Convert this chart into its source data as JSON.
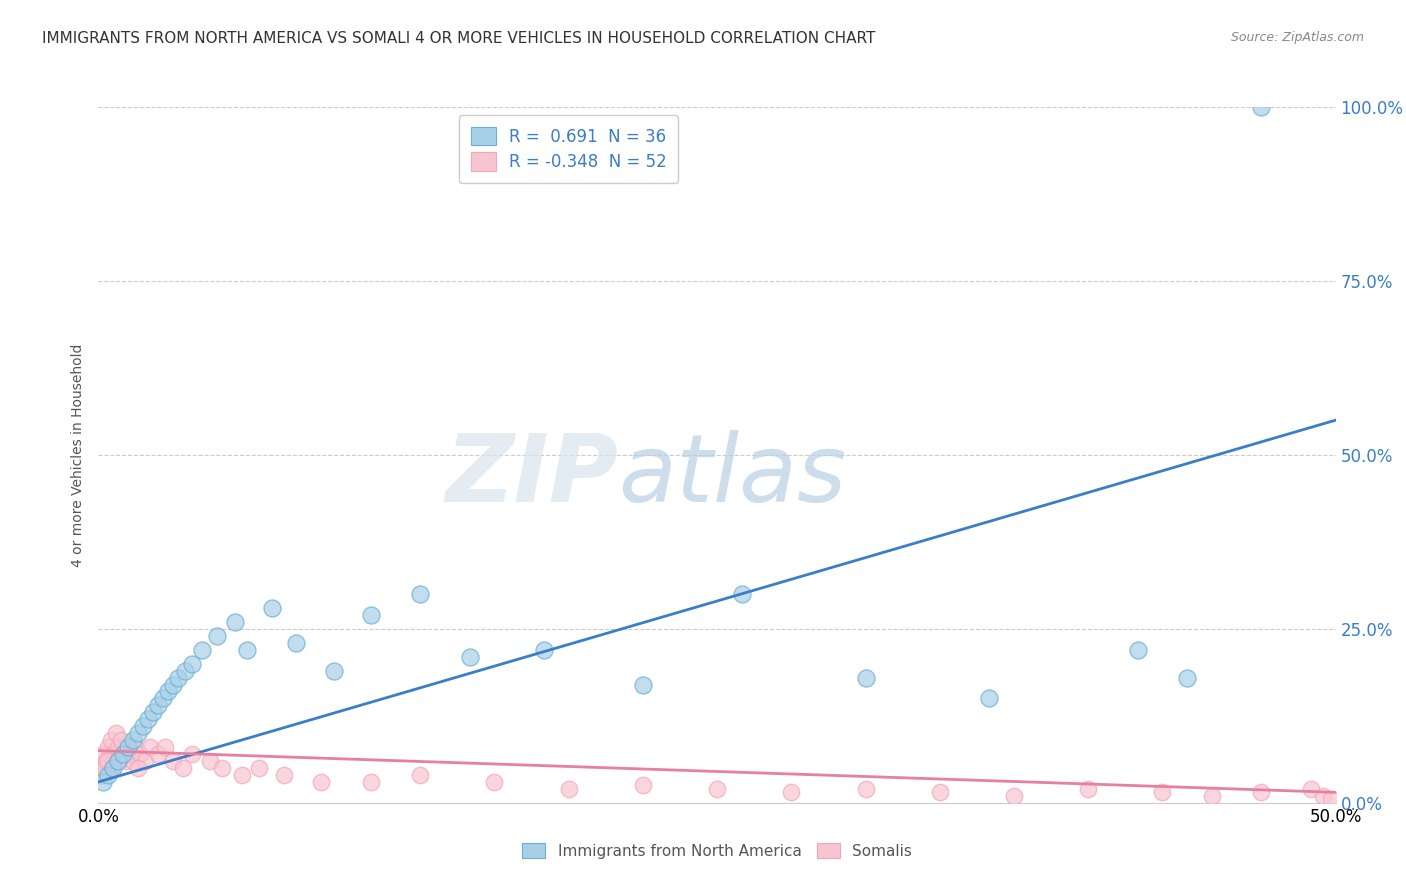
{
  "title": "IMMIGRANTS FROM NORTH AMERICA VS SOMALI 4 OR MORE VEHICLES IN HOUSEHOLD CORRELATION CHART",
  "source": "Source: ZipAtlas.com",
  "ylabel": "4 or more Vehicles in Household",
  "ytick_vals": [
    0.0,
    25.0,
    50.0,
    75.0,
    100.0
  ],
  "xlim": [
    0.0,
    50.0
  ],
  "ylim": [
    0.0,
    100.0
  ],
  "legend1_r": "0.691",
  "legend1_n": "36",
  "legend2_r": "-0.348",
  "legend2_n": "52",
  "blue_color": "#a8cfe8",
  "blue_edge_color": "#6aaed6",
  "pink_color": "#f7c5d0",
  "pink_edge_color": "#f4a6b8",
  "blue_line_color": "#3a7dc9",
  "pink_line_color": "#e87fa0",
  "watermark_zip_color": "#d8e4ef",
  "watermark_atlas_color": "#b8cfe4",
  "background_color": "#ffffff",
  "grid_color": "#cccccc",
  "blue_scatter_x": [
    0.2,
    0.4,
    0.6,
    0.8,
    1.0,
    1.2,
    1.4,
    1.6,
    1.8,
    2.0,
    2.2,
    2.4,
    2.6,
    2.8,
    3.0,
    3.2,
    3.5,
    3.8,
    4.2,
    4.8,
    5.5,
    6.0,
    7.0,
    8.0,
    9.5,
    11.0,
    13.0,
    15.0,
    18.0,
    22.0,
    26.0,
    31.0,
    36.0,
    42.0,
    44.0,
    47.0
  ],
  "blue_scatter_y": [
    3.0,
    4.0,
    5.0,
    6.0,
    7.0,
    8.0,
    9.0,
    10.0,
    11.0,
    12.0,
    13.0,
    14.0,
    15.0,
    16.0,
    17.0,
    18.0,
    19.0,
    20.0,
    22.0,
    24.0,
    26.0,
    22.0,
    28.0,
    23.0,
    19.0,
    27.0,
    30.0,
    21.0,
    22.0,
    17.0,
    30.0,
    18.0,
    15.0,
    22.0,
    18.0,
    100.0
  ],
  "pink_scatter_x": [
    0.1,
    0.2,
    0.3,
    0.4,
    0.5,
    0.6,
    0.7,
    0.8,
    0.9,
    1.0,
    1.1,
    1.2,
    1.3,
    1.4,
    1.5,
    1.7,
    1.9,
    2.1,
    2.4,
    2.7,
    3.0,
    3.4,
    3.8,
    4.5,
    5.0,
    5.8,
    6.5,
    7.5,
    9.0,
    11.0,
    13.0,
    16.0,
    19.0,
    22.0,
    25.0,
    28.0,
    31.0,
    34.0,
    37.0,
    40.0,
    43.0,
    45.0,
    47.0,
    49.0,
    49.5,
    49.8,
    0.15,
    0.25,
    0.35,
    0.55,
    0.75,
    1.6
  ],
  "pink_scatter_y": [
    5.0,
    7.0,
    6.0,
    8.0,
    9.0,
    7.0,
    10.0,
    8.0,
    9.0,
    7.0,
    6.0,
    8.0,
    7.0,
    6.0,
    8.0,
    7.0,
    6.0,
    8.0,
    7.0,
    8.0,
    6.0,
    5.0,
    7.0,
    6.0,
    5.0,
    4.0,
    5.0,
    4.0,
    3.0,
    3.0,
    4.0,
    3.0,
    2.0,
    2.5,
    2.0,
    1.5,
    2.0,
    1.5,
    1.0,
    2.0,
    1.5,
    1.0,
    1.5,
    2.0,
    1.0,
    0.5,
    4.0,
    5.0,
    6.0,
    5.0,
    6.0,
    5.0
  ],
  "blue_line_x": [
    0.0,
    50.0
  ],
  "blue_line_y": [
    3.0,
    55.0
  ],
  "pink_line_x": [
    0.0,
    50.0
  ],
  "pink_line_y": [
    7.5,
    1.5
  ]
}
